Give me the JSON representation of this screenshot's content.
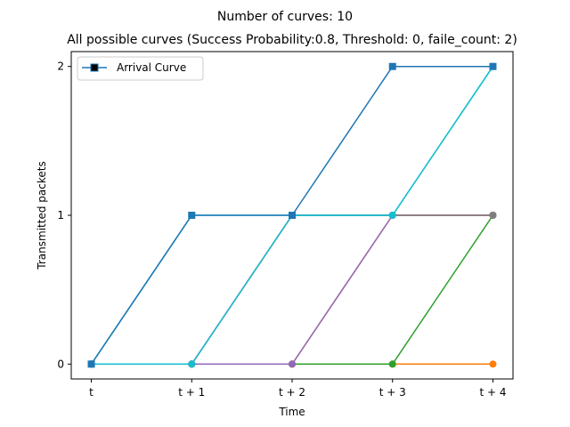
{
  "chart_data": {
    "type": "line",
    "suptitle": "Number of curves: 10",
    "title": "All possible curves (Success Probability:0.8, Threshold: 0, faile_count: 2)",
    "xlabel": "Time",
    "ylabel": "Transmitted packets",
    "x_ticks": [
      "t",
      "t + 1",
      "t + 2",
      "t + 3",
      "t + 4"
    ],
    "y_ticks": [
      0,
      1,
      2
    ],
    "xlim": [
      -0.2,
      4.2
    ],
    "ylim": [
      -0.1,
      2.1
    ],
    "grid": false,
    "legend": {
      "placement": "top-left",
      "entries": [
        {
          "label": "Arrival Curve",
          "color": "#1f77b4",
          "marker": "square"
        }
      ]
    },
    "series": [
      {
        "color": "#ff7f0e",
        "marker": "circle",
        "values": [
          0,
          0,
          0,
          0,
          0
        ]
      },
      {
        "color": "#2ca02c",
        "marker": "circle",
        "values": [
          0,
          0,
          0,
          0,
          1
        ]
      },
      {
        "color": "#bcbd22",
        "marker": "circle",
        "values": [
          0,
          0,
          0,
          1,
          1
        ]
      },
      {
        "color": "#9467bd",
        "marker": "circle",
        "values": [
          0,
          0,
          0,
          1,
          1
        ]
      },
      {
        "color": "#8c564b",
        "marker": "circle",
        "values": [
          0,
          0,
          1,
          1,
          1
        ]
      },
      {
        "color": "#e377c2",
        "marker": "circle",
        "values": [
          0,
          0,
          1,
          1,
          1
        ]
      },
      {
        "color": "#7f7f7f",
        "marker": "circle",
        "values": [
          0,
          0,
          1,
          1,
          1
        ]
      },
      {
        "color": "#17becf",
        "marker": "circle",
        "values": [
          0,
          1,
          1,
          1,
          2
        ]
      },
      {
        "color": "#17becf",
        "marker": "circle",
        "values": [
          0,
          0,
          1,
          1,
          2
        ]
      },
      {
        "color": "#1f77b4",
        "marker": "square",
        "values": [
          0,
          1,
          1,
          2,
          2
        ]
      }
    ]
  }
}
